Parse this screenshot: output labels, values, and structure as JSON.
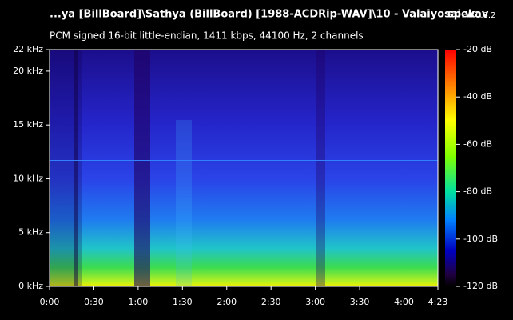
{
  "chart_data": {
    "type": "spectrogram",
    "title": "...ya [BillBoard]\\Sathya (BillBoard) [1988-ACDRip-WAV]\\10 - Valaiyosai.wav",
    "subtitle": "PCM signed 16-bit little-endian, 1411 kbps, 44100 Hz, 2 channels",
    "app_name": "spek",
    "app_version": "0.8.2",
    "xlim": [
      0,
      263
    ],
    "xticks": [
      {
        "value": 0,
        "label": "0:00"
      },
      {
        "value": 30,
        "label": "0:30"
      },
      {
        "value": 60,
        "label": "1:00"
      },
      {
        "value": 90,
        "label": "1:30"
      },
      {
        "value": 120,
        "label": "2:00"
      },
      {
        "value": 150,
        "label": "2:30"
      },
      {
        "value": 180,
        "label": "3:00"
      },
      {
        "value": 210,
        "label": "3:30"
      },
      {
        "value": 240,
        "label": "4:00"
      },
      {
        "value": 263,
        "label": "4:23"
      }
    ],
    "ylim": [
      0,
      22
    ],
    "yticks": [
      {
        "value": 0,
        "label": "0 kHz"
      },
      {
        "value": 5,
        "label": "5 kHz"
      },
      {
        "value": 10,
        "label": "10 kHz"
      },
      {
        "value": 15,
        "label": "15 kHz"
      },
      {
        "value": 20,
        "label": "20 kHz"
      },
      {
        "value": 22,
        "label": "22 kHz"
      }
    ],
    "colorbar": {
      "lim": [
        -120,
        -20
      ],
      "ticks": [
        {
          "value": -20,
          "label": "-20 dB"
        },
        {
          "value": -40,
          "label": "-40 dB"
        },
        {
          "value": -60,
          "label": "-60 dB"
        },
        {
          "value": -80,
          "label": "-80 dB"
        },
        {
          "value": -100,
          "label": "-100 dB"
        },
        {
          "value": -120,
          "label": "-120 dB"
        }
      ]
    }
  }
}
